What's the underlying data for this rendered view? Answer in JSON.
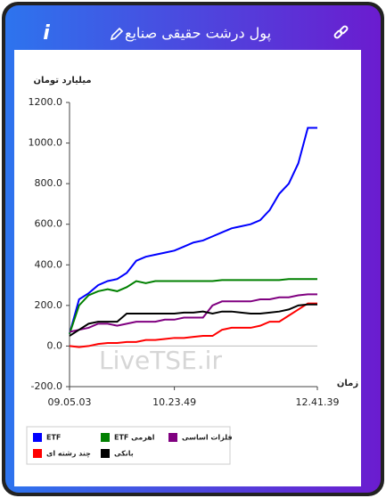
{
  "header": {
    "title": "پول درشت حقیقی صنایع",
    "info_label": "i"
  },
  "chart_data": {
    "type": "line",
    "y_label": "میلیارد تومان",
    "x_label": "زمان",
    "watermark": "LiveTSE.ir",
    "categories": [
      "09.05.03",
      null,
      null,
      null,
      null,
      null,
      null,
      null,
      null,
      null,
      null,
      "10.23.49",
      null,
      null,
      null,
      null,
      null,
      null,
      null,
      null,
      null,
      null,
      null,
      null,
      null,
      null,
      "12.41.39"
    ],
    "ylim": [
      -200,
      1200
    ],
    "yticks": [
      {
        "value": -200,
        "label": "-200.0"
      },
      {
        "value": 0,
        "label": "0.0"
      },
      {
        "value": 200,
        "label": "200.0"
      },
      {
        "value": 400,
        "label": "400.0"
      },
      {
        "value": 600,
        "label": "600.0"
      },
      {
        "value": 800,
        "label": "800.0"
      },
      {
        "value": 1000,
        "label": "1000.0"
      },
      {
        "value": 1200,
        "label": "1200.0"
      }
    ],
    "series": [
      {
        "name": "ETF",
        "color": "#0000ff",
        "values": [
          60,
          230,
          260,
          300,
          320,
          330,
          360,
          420,
          440,
          450,
          460,
          470,
          490,
          510,
          520,
          540,
          560,
          580,
          590,
          600,
          620,
          670,
          750,
          800,
          900,
          1075,
          1075
        ]
      },
      {
        "name": "ETF اهرمی",
        "color": "#008000",
        "values": [
          60,
          200,
          250,
          270,
          280,
          270,
          290,
          320,
          310,
          320,
          320,
          320,
          320,
          320,
          320,
          320,
          325,
          325,
          325,
          325,
          325,
          325,
          325,
          330,
          330,
          330,
          330
        ]
      },
      {
        "name": "فلزات اساسی",
        "color": "#800080",
        "values": [
          70,
          80,
          90,
          110,
          110,
          100,
          110,
          120,
          120,
          120,
          130,
          130,
          140,
          140,
          140,
          200,
          220,
          220,
          220,
          220,
          230,
          230,
          240,
          240,
          250,
          255,
          255
        ]
      },
      {
        "name": "چند رشته ای",
        "color": "#ff0000",
        "values": [
          0,
          -5,
          0,
          10,
          15,
          15,
          20,
          20,
          30,
          30,
          35,
          40,
          40,
          45,
          50,
          50,
          80,
          90,
          90,
          90,
          100,
          120,
          120,
          150,
          180,
          210,
          210
        ]
      },
      {
        "name": "بانکی",
        "color": "#000000",
        "values": [
          50,
          80,
          110,
          120,
          120,
          120,
          160,
          160,
          160,
          160,
          160,
          160,
          165,
          165,
          170,
          160,
          170,
          170,
          165,
          160,
          160,
          165,
          170,
          180,
          200,
          205,
          205
        ]
      }
    ]
  }
}
